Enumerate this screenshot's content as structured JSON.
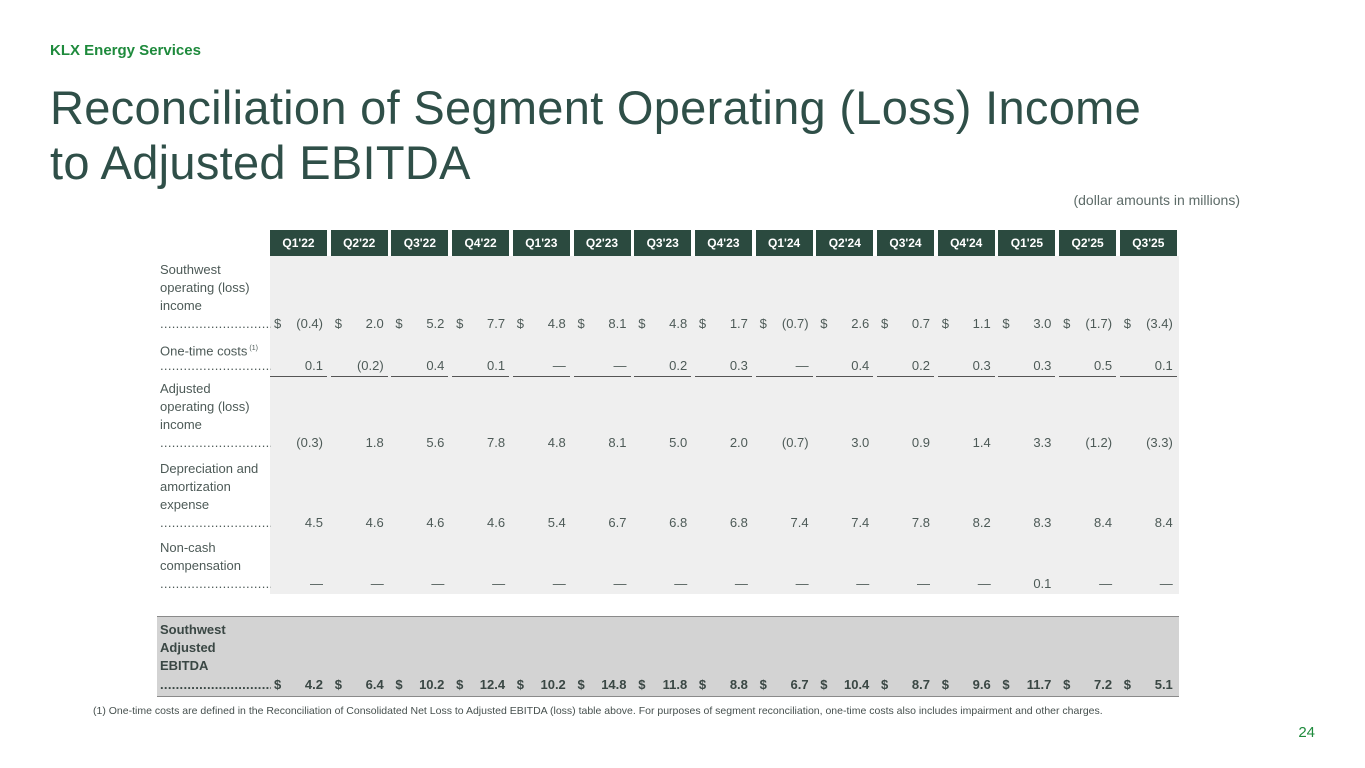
{
  "company": "KLX Energy Services",
  "title_line1": "Reconciliation of Segment Operating (Loss) Income",
  "title_line2": "to Adjusted EBITDA",
  "units_note": "(dollar amounts in millions)",
  "page_number": "24",
  "footnote": "(1) One-time costs are defined in the Reconciliation of Consolidated Net Loss to Adjusted EBITDA (loss) table above. For purposes of segment reconciliation, one-time costs also includes impairment and other charges.",
  "dot_leader": "...............................................",
  "table": {
    "columns": [
      "Q1'22",
      "Q2'22",
      "Q3'22",
      "Q4'22",
      "Q1'23",
      "Q2'23",
      "Q3'23",
      "Q4'23",
      "Q1'24",
      "Q2'24",
      "Q3'24",
      "Q4'24",
      "Q1'25",
      "Q2'25",
      "Q3'25"
    ],
    "rows": [
      {
        "label_lines": [
          "Southwest",
          "operating (loss)",
          "income"
        ],
        "sup": "",
        "dollar_sign": "$",
        "values": [
          "(0.4)",
          "2.0",
          "5.2",
          "7.7",
          "4.8",
          "8.1",
          "4.8",
          "1.7",
          "(0.7)",
          "2.6",
          "0.7",
          "1.1",
          "3.0",
          "(1.7)",
          "(3.4)"
        ]
      },
      {
        "label_lines": [
          "One-time costs"
        ],
        "sup": "(1)",
        "dollar_sign": "",
        "values": [
          "0.1",
          "(0.2)",
          "0.4",
          "0.1",
          "—",
          "—",
          "0.2",
          "0.3",
          "—",
          "0.4",
          "0.2",
          "0.3",
          "0.3",
          "0.5",
          "0.1"
        ]
      },
      {
        "label_lines": [
          "Adjusted",
          "operating (loss)",
          "income"
        ],
        "sup": "",
        "dollar_sign": "",
        "values": [
          "(0.3)",
          "1.8",
          "5.6",
          "7.8",
          "4.8",
          "8.1",
          "5.0",
          "2.0",
          "(0.7)",
          "3.0",
          "0.9",
          "1.4",
          "3.3",
          "(1.2)",
          "(3.3)"
        ]
      },
      {
        "label_lines": [
          "Depreciation and",
          "amortization",
          "expense"
        ],
        "sup": "",
        "dollar_sign": "",
        "values": [
          "4.5",
          "4.6",
          "4.6",
          "4.6",
          "5.4",
          "6.7",
          "6.8",
          "6.8",
          "7.4",
          "7.4",
          "7.8",
          "8.2",
          "8.3",
          "8.4",
          "8.4"
        ]
      },
      {
        "label_lines": [
          "Non-cash",
          "compensation"
        ],
        "sup": "",
        "dollar_sign": "",
        "values": [
          "—",
          "—",
          "—",
          "—",
          "—",
          "—",
          "—",
          "—",
          "—",
          "—",
          "—",
          "—",
          "0.1",
          "—",
          "—"
        ]
      }
    ],
    "total_row": {
      "label_lines": [
        "Southwest",
        "Adjusted",
        "EBITDA"
      ],
      "dollar_sign": "$",
      "values": [
        "4.2",
        "6.4",
        "10.2",
        "12.4",
        "10.2",
        "14.8",
        "11.8",
        "8.8",
        "6.7",
        "10.4",
        "8.7",
        "9.6",
        "11.7",
        "7.2",
        "5.1"
      ]
    }
  }
}
